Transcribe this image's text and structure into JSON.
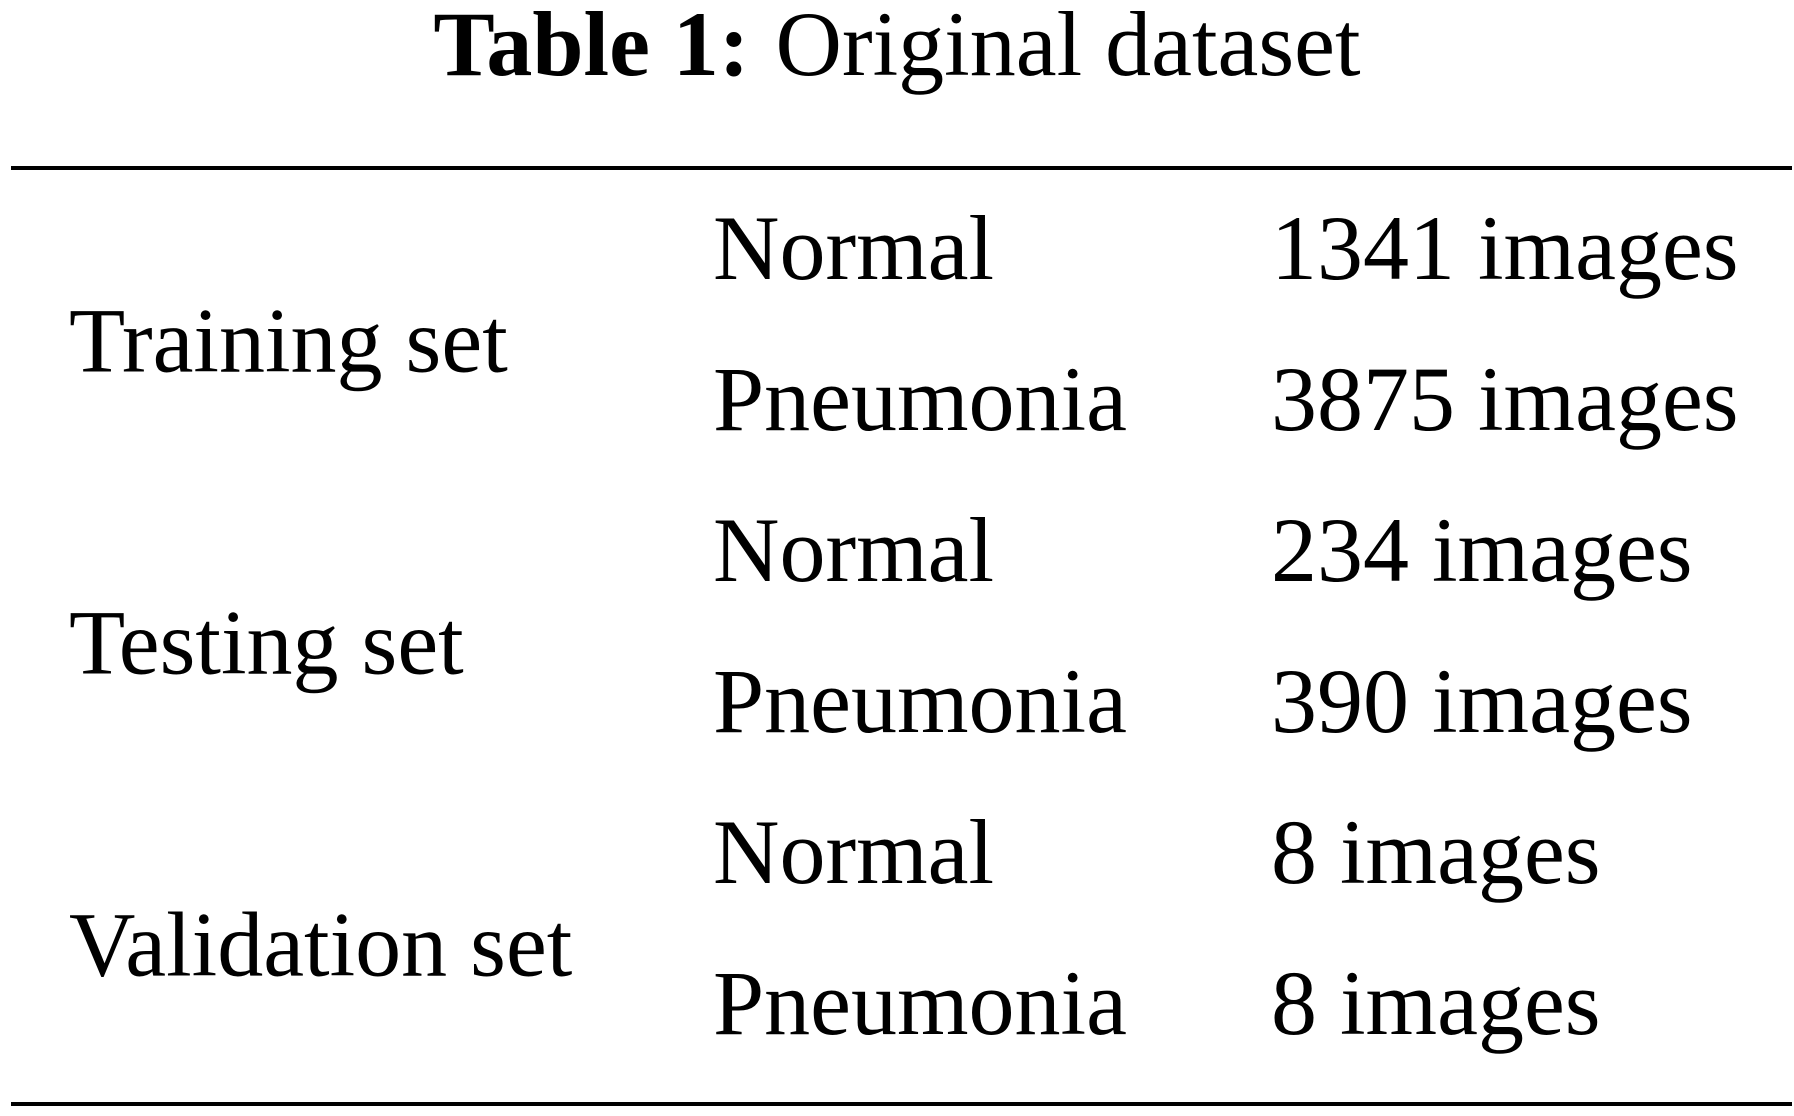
{
  "caption": {
    "label": "Table 1:",
    "text": "Original dataset"
  },
  "table": {
    "groups": [
      {
        "name": "Training set",
        "rows": [
          [
            "Normal",
            "1341 images"
          ],
          [
            "Pneumonia",
            "3875 images"
          ]
        ]
      },
      {
        "name": "Testing set",
        "rows": [
          [
            "Normal",
            "234 images"
          ],
          [
            "Pneumonia",
            "390 images"
          ]
        ]
      },
      {
        "name": "Validation set",
        "rows": [
          [
            "Normal",
            "8 images"
          ],
          [
            "Pneumonia",
            "8 images"
          ]
        ]
      }
    ]
  }
}
